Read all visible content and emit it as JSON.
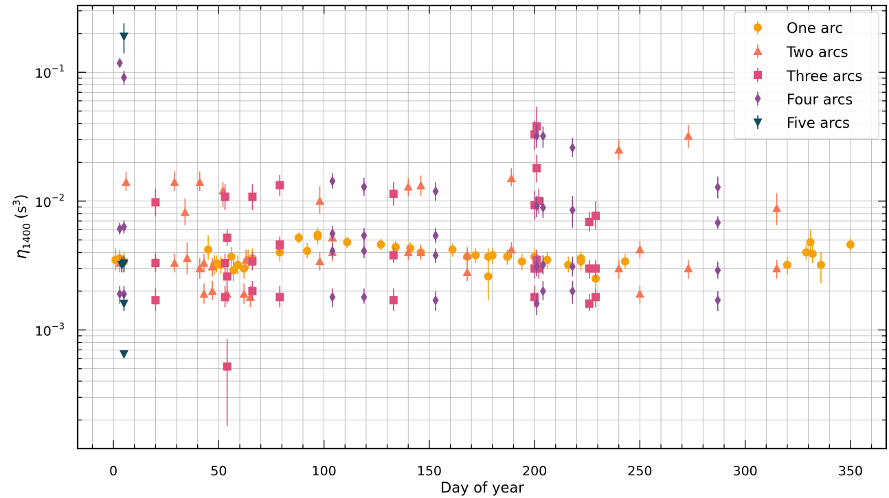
{
  "chart_data": {
    "type": "scatter",
    "xlabel": "Day of year",
    "ylabel": "η_1400 (s^3)",
    "ylabel_main": "η",
    "ylabel_sub": "1400",
    "ylabel_unit": "(s",
    "ylabel_unit_sup": "3",
    "ylabel_unit_close": ")",
    "xlim": [
      -17,
      367
    ],
    "ylim": [
      0.00012,
      0.33
    ],
    "yscale": "log",
    "grid": true,
    "legend_position": "top-right",
    "x_ticks": [
      0,
      50,
      100,
      150,
      200,
      250,
      300,
      350
    ],
    "x_tick_labels": [
      "0",
      "50",
      "100",
      "150",
      "200",
      "250",
      "300",
      "350"
    ],
    "y_ticks": [
      0.001,
      0.01,
      0.1
    ],
    "y_tick_base": [
      "10",
      "10",
      "10"
    ],
    "y_tick_exp": [
      "−3",
      "−2",
      "−1"
    ],
    "series": [
      {
        "name": "One arc",
        "marker": "circle",
        "color": "#f5a10c",
        "points": [
          [
            1,
            0.0035,
            0.0029,
            0.0043
          ],
          [
            3,
            0.0036,
            0.0031,
            0.0042
          ],
          [
            5,
            0.0034,
            0.0029,
            0.004
          ],
          [
            45,
            0.0042,
            0.0035,
            0.0054
          ],
          [
            48,
            0.0032,
            0.0027,
            0.0038
          ],
          [
            49,
            0.0033,
            0.0028,
            0.0038
          ],
          [
            51,
            0.0032,
            0.0027,
            0.0037
          ],
          [
            56,
            0.0037,
            0.0031,
            0.0044
          ],
          [
            57,
            0.0029,
            0.0024,
            0.0035
          ],
          [
            59,
            0.0032,
            0.0027,
            0.0038
          ],
          [
            62,
            0.003,
            0.0025,
            0.0036
          ],
          [
            64,
            0.0035,
            0.003,
            0.0042
          ],
          [
            66,
            0.0036,
            0.003,
            0.0043
          ],
          [
            79,
            0.004,
            0.0034,
            0.0047
          ],
          [
            88,
            0.0052,
            0.0047,
            0.0057
          ],
          [
            92,
            0.0041,
            0.0036,
            0.0047
          ],
          [
            97,
            0.0053,
            0.0046,
            0.006
          ],
          [
            97,
            0.0055,
            0.0049,
            0.0062
          ],
          [
            111,
            0.0048,
            0.0043,
            0.0053
          ],
          [
            127,
            0.0046,
            0.0041,
            0.0051
          ],
          [
            134,
            0.0044,
            0.0039,
            0.0049
          ],
          [
            141,
            0.0043,
            0.0038,
            0.0048
          ],
          [
            146,
            0.004,
            0.0035,
            0.0046
          ],
          [
            161,
            0.0042,
            0.0037,
            0.0047
          ],
          [
            168,
            0.0037,
            0.0032,
            0.0042
          ],
          [
            172,
            0.0038,
            0.0033,
            0.0043
          ],
          [
            178,
            0.0026,
            0.0017,
            0.0039
          ],
          [
            178,
            0.0037,
            0.0032,
            0.0043
          ],
          [
            180,
            0.0038,
            0.0033,
            0.0043
          ],
          [
            187,
            0.0037,
            0.0032,
            0.0042
          ],
          [
            194,
            0.0034,
            0.0029,
            0.0039
          ],
          [
            200,
            0.0037,
            0.0032,
            0.0043
          ],
          [
            206,
            0.0035,
            0.003,
            0.004
          ],
          [
            216,
            0.0032,
            0.0028,
            0.0037
          ],
          [
            222,
            0.0036,
            0.0031,
            0.0041
          ],
          [
            222,
            0.0034,
            0.0029,
            0.0039
          ],
          [
            229,
            0.0025,
            0.0021,
            0.003
          ],
          [
            243,
            0.0034,
            0.003,
            0.0039
          ],
          [
            320,
            0.0032,
            0.0027,
            0.0037
          ],
          [
            329,
            0.004,
            0.0035,
            0.0046
          ],
          [
            331,
            0.0048,
            0.004,
            0.006
          ],
          [
            332,
            0.0039,
            0.0033,
            0.0046
          ],
          [
            336,
            0.0032,
            0.0023,
            0.004
          ],
          [
            350,
            0.0046,
            0.0041,
            0.0051
          ]
        ]
      },
      {
        "name": "Two arcs",
        "marker": "triangle",
        "color": "#f47654",
        "points": [
          [
            3,
            0.0033,
            0.0028,
            0.0039
          ],
          [
            6,
            0.014,
            0.012,
            0.017
          ],
          [
            20,
            0.0034,
            0.0029,
            0.004
          ],
          [
            29,
            0.0033,
            0.0028,
            0.0039
          ],
          [
            29,
            0.014,
            0.012,
            0.017
          ],
          [
            34,
            0.0082,
            0.0065,
            0.0105
          ],
          [
            35,
            0.0036,
            0.0027,
            0.0048
          ],
          [
            41,
            0.003,
            0.0025,
            0.0036
          ],
          [
            41,
            0.014,
            0.012,
            0.017
          ],
          [
            43,
            0.0033,
            0.0028,
            0.0039
          ],
          [
            43,
            0.0019,
            0.0016,
            0.0023
          ],
          [
            47,
            0.002,
            0.0017,
            0.0024
          ],
          [
            47,
            0.0031,
            0.0026,
            0.0036
          ],
          [
            52,
            0.012,
            0.009,
            0.014
          ],
          [
            54,
            0.0019,
            0.0016,
            0.0023
          ],
          [
            62,
            0.0019,
            0.0016,
            0.0023
          ],
          [
            63,
            0.0035,
            0.0029,
            0.0042
          ],
          [
            65,
            0.0018,
            0.0015,
            0.0022
          ],
          [
            79,
            0.0045,
            0.0039,
            0.0052
          ],
          [
            98,
            0.0034,
            0.0029,
            0.004
          ],
          [
            98,
            0.01,
            0.008,
            0.013
          ],
          [
            104,
            0.0052,
            0.0045,
            0.006
          ],
          [
            104,
            0.004,
            0.0034,
            0.0047
          ],
          [
            140,
            0.0129,
            0.011,
            0.015
          ],
          [
            140,
            0.004,
            0.0035,
            0.0046
          ],
          [
            146,
            0.0132,
            0.011,
            0.0158
          ],
          [
            146,
            0.004,
            0.0035,
            0.0046
          ],
          [
            168,
            0.0028,
            0.0024,
            0.0033
          ],
          [
            168,
            0.0038,
            0.0033,
            0.0044
          ],
          [
            189,
            0.015,
            0.013,
            0.018
          ],
          [
            189,
            0.0042,
            0.0036,
            0.0048
          ],
          [
            240,
            0.025,
            0.021,
            0.03
          ],
          [
            240,
            0.003,
            0.0025,
            0.0035
          ],
          [
            250,
            0.0042,
            0.0036,
            0.0049
          ],
          [
            250,
            0.0019,
            0.0016,
            0.0022
          ],
          [
            273,
            0.032,
            0.026,
            0.039
          ],
          [
            273,
            0.003,
            0.0025,
            0.0035
          ],
          [
            315,
            0.0088,
            0.0065,
            0.0115
          ],
          [
            315,
            0.003,
            0.0025,
            0.0035
          ]
        ]
      },
      {
        "name": "Three arcs",
        "marker": "square",
        "color": "#df4c7a",
        "points": [
          [
            20,
            0.0098,
            0.0076,
            0.0125
          ],
          [
            20,
            0.0033,
            0.0028,
            0.0039
          ],
          [
            20,
            0.0017,
            0.0014,
            0.0021
          ],
          [
            53,
            0.0108,
            0.0085,
            0.0135
          ],
          [
            53,
            0.0033,
            0.0028,
            0.0039
          ],
          [
            53,
            0.0018,
            0.0015,
            0.0022
          ],
          [
            54,
            0.0052,
            0.0045,
            0.006
          ],
          [
            54,
            0.0026,
            0.002,
            0.0034
          ],
          [
            54,
            0.00052,
            0.00018,
            0.00085
          ],
          [
            66,
            0.0108,
            0.0085,
            0.0135
          ],
          [
            66,
            0.0034,
            0.0029,
            0.004
          ],
          [
            66,
            0.002,
            0.0017,
            0.0024
          ],
          [
            79,
            0.0133,
            0.011,
            0.016
          ],
          [
            79,
            0.0046,
            0.004,
            0.0053
          ],
          [
            79,
            0.0018,
            0.0015,
            0.0022
          ],
          [
            133,
            0.0114,
            0.0092,
            0.014
          ],
          [
            133,
            0.0038,
            0.0033,
            0.0044
          ],
          [
            133,
            0.0017,
            0.0014,
            0.0021
          ],
          [
            200,
            0.033,
            0.025,
            0.042
          ],
          [
            200,
            0.0093,
            0.0072,
            0.012
          ],
          [
            200,
            0.003,
            0.0025,
            0.0036
          ],
          [
            200,
            0.0018,
            0.0015,
            0.0022
          ],
          [
            201,
            0.038,
            0.028,
            0.054
          ],
          [
            201,
            0.018,
            0.014,
            0.023
          ],
          [
            202,
            0.01,
            0.008,
            0.0125
          ],
          [
            202,
            0.003,
            0.0025,
            0.0036
          ],
          [
            201,
            0.0035,
            0.0029,
            0.0042
          ],
          [
            226,
            0.0069,
            0.0058,
            0.0082
          ],
          [
            226,
            0.003,
            0.0025,
            0.0035
          ],
          [
            226,
            0.0016,
            0.0014,
            0.0019
          ],
          [
            229,
            0.0077,
            0.006,
            0.01
          ],
          [
            229,
            0.003,
            0.0025,
            0.0035
          ],
          [
            229,
            0.0018,
            0.0015,
            0.0021
          ]
        ]
      },
      {
        "name": "Four arcs",
        "marker": "diamond",
        "color": "#8d4b92",
        "points": [
          [
            5,
            0.091,
            0.08,
            0.103
          ],
          [
            3,
            0.118,
            0.11,
            0.125
          ],
          [
            3,
            0.0061,
            0.0055,
            0.0068
          ],
          [
            5,
            0.0063,
            0.0056,
            0.0071
          ],
          [
            3,
            0.0019,
            0.0016,
            0.0022
          ],
          [
            5,
            0.0019,
            0.0016,
            0.0022
          ],
          [
            104,
            0.0143,
            0.0125,
            0.0165
          ],
          [
            104,
            0.0056,
            0.0049,
            0.0064
          ],
          [
            104,
            0.0041,
            0.0036,
            0.0047
          ],
          [
            104,
            0.0018,
            0.0015,
            0.0021
          ],
          [
            119,
            0.0129,
            0.011,
            0.0152
          ],
          [
            119,
            0.0054,
            0.0047,
            0.0062
          ],
          [
            119,
            0.0041,
            0.0036,
            0.0047
          ],
          [
            119,
            0.0018,
            0.0016,
            0.0021
          ],
          [
            153,
            0.0119,
            0.01,
            0.014
          ],
          [
            153,
            0.0054,
            0.0047,
            0.0062
          ],
          [
            153,
            0.0038,
            0.0033,
            0.0043
          ],
          [
            153,
            0.0017,
            0.0014,
            0.002
          ],
          [
            201,
            0.032,
            0.026,
            0.04
          ],
          [
            201,
            0.0091,
            0.0075,
            0.011
          ],
          [
            201,
            0.0031,
            0.0026,
            0.0037
          ],
          [
            201,
            0.0016,
            0.0013,
            0.0019
          ],
          [
            204,
            0.032,
            0.026,
            0.038
          ],
          [
            204,
            0.0089,
            0.0074,
            0.0107
          ],
          [
            204,
            0.0032,
            0.0027,
            0.0038
          ],
          [
            204,
            0.002,
            0.0017,
            0.0024
          ],
          [
            218,
            0.026,
            0.022,
            0.031
          ],
          [
            218,
            0.0085,
            0.0062,
            0.011
          ],
          [
            218,
            0.0031,
            0.0026,
            0.0037
          ],
          [
            218,
            0.002,
            0.0016,
            0.0024
          ],
          [
            287,
            0.0128,
            0.0105,
            0.0155
          ],
          [
            287,
            0.0068,
            0.0061,
            0.0076
          ],
          [
            287,
            0.0029,
            0.0025,
            0.0034
          ],
          [
            287,
            0.0017,
            0.0014,
            0.002
          ]
        ]
      },
      {
        "name": "Five arcs",
        "marker": "triangle-down",
        "color": "#0f4a5d",
        "points": [
          [
            5,
            0.19,
            0.14,
            0.24
          ],
          [
            4,
            0.0032,
            0.0028,
            0.0037
          ],
          [
            5,
            0.0033,
            0.0028,
            0.0038
          ],
          [
            5,
            0.0016,
            0.0014,
            0.0019
          ],
          [
            5,
            0.00065,
            0.00062,
            0.00069
          ]
        ]
      }
    ]
  }
}
